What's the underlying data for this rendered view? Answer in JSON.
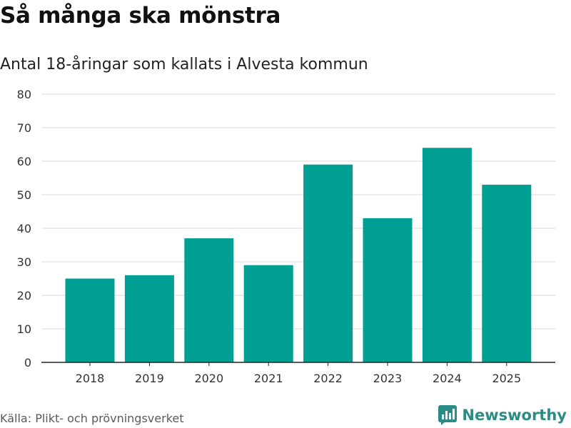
{
  "title": "Så många ska mönstra",
  "subtitle": "Antal 18-åringar som kallats i Alvesta kommun",
  "source": "Källa: Plikt- och prövningsverket",
  "brand": "Newsworthy",
  "colors": {
    "bar": "#009f94",
    "grid": "#d9d9d9",
    "axis": "#222222",
    "brand": "#2b8b86"
  },
  "chart_data": {
    "type": "bar",
    "title": "Så många ska mönstra",
    "subtitle": "Antal 18-åringar som kallats i Alvesta kommun",
    "categories": [
      "2018",
      "2019",
      "2020",
      "2021",
      "2022",
      "2023",
      "2024",
      "2025"
    ],
    "values": [
      25,
      26,
      37,
      29,
      59,
      43,
      64,
      53
    ],
    "xlabel": "",
    "ylabel": "",
    "ylim": [
      0,
      80
    ],
    "yticks": [
      0,
      10,
      20,
      30,
      40,
      50,
      60,
      70,
      80
    ],
    "grid": true
  }
}
